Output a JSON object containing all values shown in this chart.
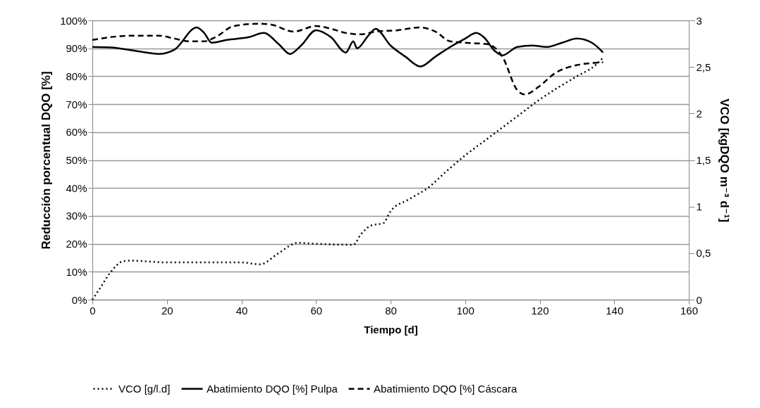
{
  "chart_data": {
    "type": "line",
    "xlabel": "Tiempo [d]",
    "ylabel": "Reducción porcentual DQO [%]",
    "y2label": "VCO [kgDQO m⁻³ d⁻¹]",
    "xlim": [
      0,
      160
    ],
    "xticks": [
      0,
      20,
      40,
      60,
      80,
      100,
      120,
      140,
      160
    ],
    "ylim": [
      0,
      100
    ],
    "yticks": [
      {
        "value": 0,
        "label": "0%"
      },
      {
        "value": 10,
        "label": "10%"
      },
      {
        "value": 20,
        "label": "20%"
      },
      {
        "value": 30,
        "label": "30%"
      },
      {
        "value": 40,
        "label": "40%"
      },
      {
        "value": 50,
        "label": "50%"
      },
      {
        "value": 60,
        "label": "60%"
      },
      {
        "value": 70,
        "label": "70%"
      },
      {
        "value": 80,
        "label": "80%"
      },
      {
        "value": 90,
        "label": "90%"
      },
      {
        "value": 100,
        "label": "100%"
      }
    ],
    "y2lim": [
      0,
      3
    ],
    "y2ticks": [
      0,
      {
        "value": 0.5,
        "label": "0,5"
      },
      1,
      {
        "value": 1.5,
        "label": "1,5"
      },
      2,
      {
        "value": 2.5,
        "label": "2,5"
      },
      3
    ],
    "grid": "y",
    "legend": "bottom",
    "series": [
      {
        "name": "VCO [g/l.d]",
        "color": "#000000",
        "line_style": "dotted",
        "axis": "y2",
        "x": [
          0,
          2,
          5,
          8,
          10,
          15,
          20,
          30,
          40,
          45,
          50,
          55,
          60,
          70,
          72,
          75,
          78,
          80,
          85,
          90,
          95,
          100,
          105,
          110,
          115,
          120,
          125,
          130,
          135,
          137
        ],
        "values": [
          0,
          0.12,
          0.3,
          0.41,
          0.42,
          0.41,
          0.4,
          0.4,
          0.4,
          0.38,
          0.5,
          0.61,
          0.6,
          0.59,
          0.7,
          0.8,
          0.82,
          0.95,
          1.08,
          1.2,
          1.38,
          1.55,
          1.7,
          1.85,
          2.0,
          2.15,
          2.28,
          2.4,
          2.52,
          2.6
        ]
      },
      {
        "name": "Abatimiento DQO [%] Pulpa",
        "color": "#000000",
        "line_style": "solid",
        "x": [
          0,
          5,
          12,
          18,
          22,
          28,
          30,
          32,
          36,
          42,
          46,
          50,
          53,
          56,
          60,
          64,
          68,
          70,
          71,
          74,
          76,
          80,
          84,
          88,
          92,
          96,
          100,
          103,
          105,
          108,
          110,
          114,
          118,
          122,
          126,
          130,
          134,
          137
        ],
        "values": [
          90.5,
          90.3,
          89,
          88,
          89.5,
          97.5,
          95.5,
          92,
          93,
          94,
          95.5,
          91.5,
          88,
          91,
          96.5,
          94,
          88.5,
          92.5,
          90,
          94.5,
          97,
          91,
          87,
          83.5,
          87,
          90.5,
          93.5,
          95.5,
          94,
          89,
          87.5,
          90.5,
          91,
          90.5,
          92,
          93.5,
          92,
          88.5
        ]
      },
      {
        "name": "Abatimiento DQO [%] Cáscara",
        "color": "#000000",
        "line_style": "dashed",
        "x": [
          0,
          10,
          18,
          22,
          26,
          30,
          33,
          38,
          45,
          48,
          54,
          60,
          64,
          68,
          72,
          76,
          82,
          88,
          92,
          96,
          100,
          106,
          110,
          114,
          116,
          120,
          124,
          130,
          137
        ],
        "values": [
          93,
          94.5,
          94.5,
          93.5,
          92.5,
          92.5,
          94,
          98,
          98.8,
          98.5,
          96,
          98,
          97,
          95.5,
          95,
          96,
          96.5,
          97.5,
          96,
          92.5,
          92,
          91.5,
          87,
          75,
          73.5,
          76.5,
          81,
          84,
          85
        ]
      }
    ]
  }
}
